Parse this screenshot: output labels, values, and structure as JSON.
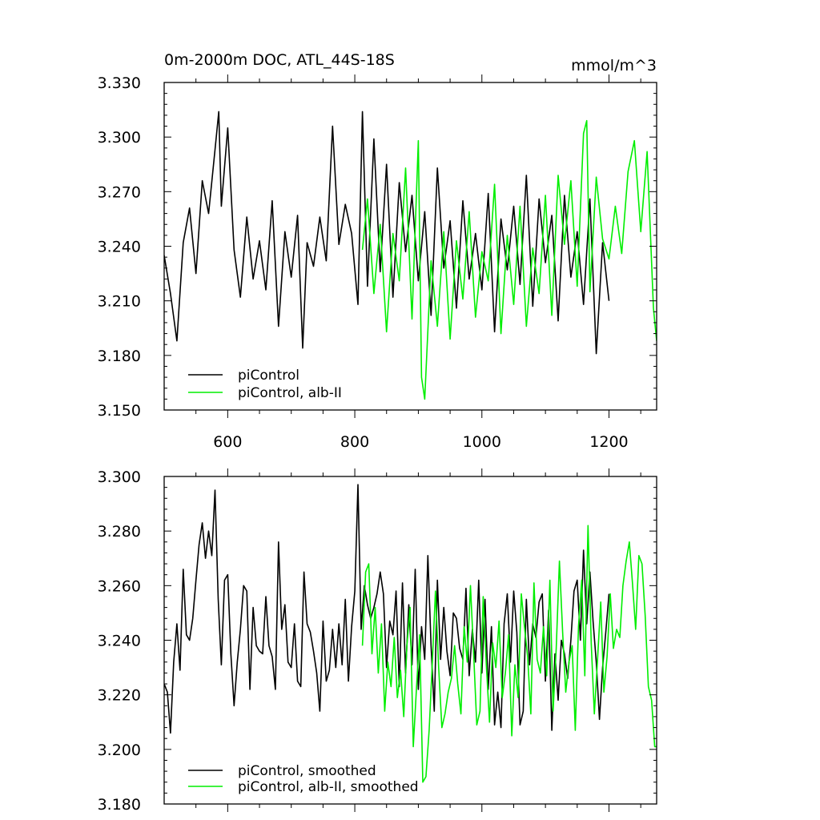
{
  "chart_data": [
    {
      "type": "line",
      "title": "0m-2000m DOC, ATL_44S-18S",
      "units": "mmol/m^3",
      "xlabel": "",
      "ylabel": "",
      "xlim": [
        500,
        1275
      ],
      "ylim": [
        3.15,
        3.33
      ],
      "xticks": [
        600,
        800,
        1000,
        1200
      ],
      "xtick_labels": [
        "600",
        "800",
        "1000",
        "1200"
      ],
      "yticks": [
        3.15,
        3.18,
        3.21,
        3.24,
        3.27,
        3.3,
        3.33
      ],
      "ytick_labels": [
        "3.150",
        "3.180",
        "3.210",
        "3.240",
        "3.270",
        "3.300",
        "3.330"
      ],
      "legend_position": "bottom-left",
      "series": [
        {
          "name": "piControl",
          "color": "#000000",
          "x": [
            500,
            510,
            520,
            530,
            540,
            550,
            560,
            570,
            580,
            586,
            590,
            600,
            610,
            620,
            630,
            640,
            650,
            660,
            670,
            680,
            690,
            700,
            710,
            718,
            725,
            735,
            745,
            755,
            765,
            775,
            785,
            795,
            805,
            812,
            820,
            830,
            840,
            850,
            860,
            870,
            880,
            890,
            900,
            910,
            920,
            930,
            940,
            950,
            960,
            970,
            980,
            990,
            1000,
            1010,
            1020,
            1030,
            1040,
            1050,
            1060,
            1070,
            1080,
            1090,
            1100,
            1110,
            1120,
            1130,
            1140,
            1150,
            1160,
            1170,
            1180,
            1190,
            1200
          ],
          "y": [
            3.235,
            3.214,
            3.188,
            3.242,
            3.261,
            3.225,
            3.276,
            3.258,
            3.293,
            3.314,
            3.262,
            3.305,
            3.238,
            3.212,
            3.256,
            3.222,
            3.243,
            3.216,
            3.265,
            3.196,
            3.248,
            3.223,
            3.257,
            3.184,
            3.242,
            3.229,
            3.256,
            3.232,
            3.306,
            3.241,
            3.263,
            3.247,
            3.208,
            3.314,
            3.218,
            3.299,
            3.226,
            3.285,
            3.212,
            3.275,
            3.237,
            3.268,
            3.221,
            3.259,
            3.202,
            3.283,
            3.228,
            3.254,
            3.206,
            3.265,
            3.222,
            3.247,
            3.216,
            3.269,
            3.193,
            3.255,
            3.227,
            3.262,
            3.219,
            3.279,
            3.207,
            3.266,
            3.231,
            3.257,
            3.199,
            3.268,
            3.223,
            3.248,
            3.208,
            3.266,
            3.181,
            3.242,
            3.21
          ]
        },
        {
          "name": "piControl, alb-II",
          "color": "#00ee00",
          "x": [
            812,
            820,
            830,
            840,
            850,
            860,
            870,
            880,
            890,
            900,
            905,
            910,
            920,
            930,
            940,
            950,
            960,
            970,
            980,
            990,
            1000,
            1010,
            1020,
            1030,
            1040,
            1050,
            1060,
            1070,
            1080,
            1090,
            1100,
            1110,
            1120,
            1130,
            1140,
            1150,
            1160,
            1165,
            1170,
            1180,
            1190,
            1200,
            1210,
            1220,
            1230,
            1240,
            1250,
            1260,
            1270,
            1275
          ],
          "y": [
            3.238,
            3.266,
            3.214,
            3.252,
            3.193,
            3.247,
            3.221,
            3.283,
            3.2,
            3.298,
            3.168,
            3.156,
            3.232,
            3.196,
            3.248,
            3.189,
            3.243,
            3.211,
            3.259,
            3.201,
            3.237,
            3.221,
            3.274,
            3.192,
            3.246,
            3.208,
            3.262,
            3.196,
            3.239,
            3.214,
            3.268,
            3.202,
            3.279,
            3.241,
            3.276,
            3.218,
            3.302,
            3.309,
            3.215,
            3.278,
            3.244,
            3.233,
            3.262,
            3.236,
            3.281,
            3.298,
            3.248,
            3.292,
            3.206,
            3.188
          ]
        }
      ]
    },
    {
      "type": "line",
      "title": "",
      "xlabel": "",
      "ylabel": "",
      "xlim": [
        500,
        1275
      ],
      "ylim": [
        3.18,
        3.3
      ],
      "xticks": [
        600,
        800,
        1000,
        1200
      ],
      "xtick_labels": [
        "",
        "",
        "",
        ""
      ],
      "yticks": [
        3.18,
        3.2,
        3.22,
        3.24,
        3.26,
        3.28,
        3.3
      ],
      "ytick_labels": [
        "3.180",
        "3.200",
        "3.220",
        "3.240",
        "3.260",
        "3.280",
        "3.300"
      ],
      "legend_position": "bottom-left",
      "series": [
        {
          "name": "piControl, smoothed",
          "color": "#000000",
          "x": [
            500,
            505,
            510,
            515,
            520,
            525,
            530,
            535,
            540,
            545,
            550,
            555,
            560,
            565,
            570,
            575,
            580,
            585,
            590,
            595,
            600,
            605,
            610,
            615,
            620,
            625,
            630,
            635,
            640,
            645,
            650,
            655,
            660,
            665,
            670,
            675,
            680,
            685,
            690,
            695,
            700,
            705,
            710,
            715,
            720,
            725,
            730,
            735,
            740,
            745,
            750,
            755,
            760,
            765,
            770,
            775,
            780,
            785,
            790,
            795,
            800,
            805,
            810,
            815,
            820,
            825,
            830,
            835,
            840,
            845,
            850,
            855,
            860,
            865,
            870,
            875,
            880,
            885,
            890,
            895,
            900,
            905,
            910,
            915,
            920,
            925,
            930,
            935,
            940,
            945,
            950,
            955,
            960,
            965,
            970,
            975,
            980,
            985,
            990,
            995,
            1000,
            1005,
            1010,
            1015,
            1020,
            1025,
            1030,
            1035,
            1040,
            1045,
            1050,
            1055,
            1060,
            1065,
            1070,
            1075,
            1080,
            1085,
            1090,
            1095,
            1100,
            1105,
            1110,
            1115,
            1120,
            1125,
            1130,
            1135,
            1140,
            1145,
            1150,
            1155,
            1160,
            1165,
            1170,
            1175,
            1180,
            1185,
            1190,
            1195,
            1200
          ],
          "y": [
            3.224,
            3.221,
            3.206,
            3.232,
            3.246,
            3.229,
            3.266,
            3.242,
            3.24,
            3.248,
            3.262,
            3.275,
            3.283,
            3.27,
            3.28,
            3.271,
            3.295,
            3.255,
            3.231,
            3.262,
            3.264,
            3.235,
            3.216,
            3.232,
            3.244,
            3.26,
            3.258,
            3.222,
            3.252,
            3.238,
            3.236,
            3.235,
            3.256,
            3.238,
            3.234,
            3.222,
            3.276,
            3.244,
            3.253,
            3.232,
            3.23,
            3.246,
            3.225,
            3.223,
            3.265,
            3.246,
            3.243,
            3.236,
            3.228,
            3.214,
            3.247,
            3.225,
            3.229,
            3.244,
            3.23,
            3.246,
            3.231,
            3.255,
            3.225,
            3.245,
            3.258,
            3.297,
            3.244,
            3.26,
            3.253,
            3.248,
            3.252,
            3.257,
            3.265,
            3.257,
            3.23,
            3.247,
            3.242,
            3.258,
            3.223,
            3.261,
            3.228,
            3.253,
            3.231,
            3.266,
            3.222,
            3.245,
            3.233,
            3.271,
            3.238,
            3.214,
            3.262,
            3.233,
            3.252,
            3.236,
            3.227,
            3.25,
            3.248,
            3.237,
            3.233,
            3.259,
            3.227,
            3.244,
            3.232,
            3.262,
            3.228,
            3.255,
            3.222,
            3.245,
            3.209,
            3.221,
            3.208,
            3.246,
            3.257,
            3.232,
            3.258,
            3.243,
            3.209,
            3.214,
            3.255,
            3.231,
            3.246,
            3.241,
            3.254,
            3.257,
            3.225,
            3.251,
            3.207,
            3.235,
            3.218,
            3.24,
            3.235,
            3.226,
            3.24,
            3.258,
            3.262,
            3.24,
            3.273,
            3.246,
            3.265,
            3.247,
            3.232,
            3.211,
            3.23,
            3.243,
            3.257
          ]
        },
        {
          "name": "piControl, alb-II, smoothed",
          "color": "#00ee00",
          "x": [
            812,
            817,
            822,
            827,
            832,
            837,
            842,
            847,
            852,
            857,
            862,
            867,
            872,
            877,
            882,
            887,
            892,
            897,
            902,
            907,
            912,
            917,
            922,
            927,
            932,
            937,
            942,
            947,
            952,
            957,
            962,
            967,
            972,
            977,
            982,
            987,
            992,
            997,
            1002,
            1007,
            1012,
            1017,
            1022,
            1027,
            1032,
            1037,
            1042,
            1047,
            1052,
            1057,
            1062,
            1067,
            1072,
            1077,
            1082,
            1087,
            1092,
            1097,
            1102,
            1107,
            1112,
            1117,
            1122,
            1127,
            1132,
            1137,
            1142,
            1147,
            1152,
            1157,
            1162,
            1167,
            1172,
            1177,
            1182,
            1187,
            1192,
            1197,
            1202,
            1207,
            1212,
            1217,
            1222,
            1227,
            1232,
            1237,
            1242,
            1247,
            1252,
            1257,
            1262,
            1267,
            1272,
            1275
          ],
          "y": [
            3.238,
            3.265,
            3.268,
            3.235,
            3.252,
            3.228,
            3.246,
            3.214,
            3.232,
            3.223,
            3.241,
            3.219,
            3.229,
            3.212,
            3.238,
            3.252,
            3.201,
            3.222,
            3.242,
            3.188,
            3.19,
            3.207,
            3.232,
            3.258,
            3.23,
            3.208,
            3.213,
            3.221,
            3.226,
            3.238,
            3.224,
            3.213,
            3.245,
            3.232,
            3.26,
            3.235,
            3.209,
            3.214,
            3.256,
            3.231,
            3.21,
            3.239,
            3.23,
            3.247,
            3.219,
            3.228,
            3.242,
            3.205,
            3.231,
            3.219,
            3.257,
            3.245,
            3.234,
            3.213,
            3.261,
            3.233,
            3.228,
            3.245,
            3.227,
            3.262,
            3.214,
            3.237,
            3.269,
            3.243,
            3.221,
            3.232,
            3.238,
            3.207,
            3.245,
            3.262,
            3.227,
            3.282,
            3.239,
            3.213,
            3.233,
            3.254,
            3.221,
            3.234,
            3.257,
            3.237,
            3.244,
            3.241,
            3.26,
            3.269,
            3.276,
            3.261,
            3.244,
            3.271,
            3.268,
            3.249,
            3.223,
            3.218,
            3.201,
            3.201
          ]
        }
      ]
    }
  ]
}
